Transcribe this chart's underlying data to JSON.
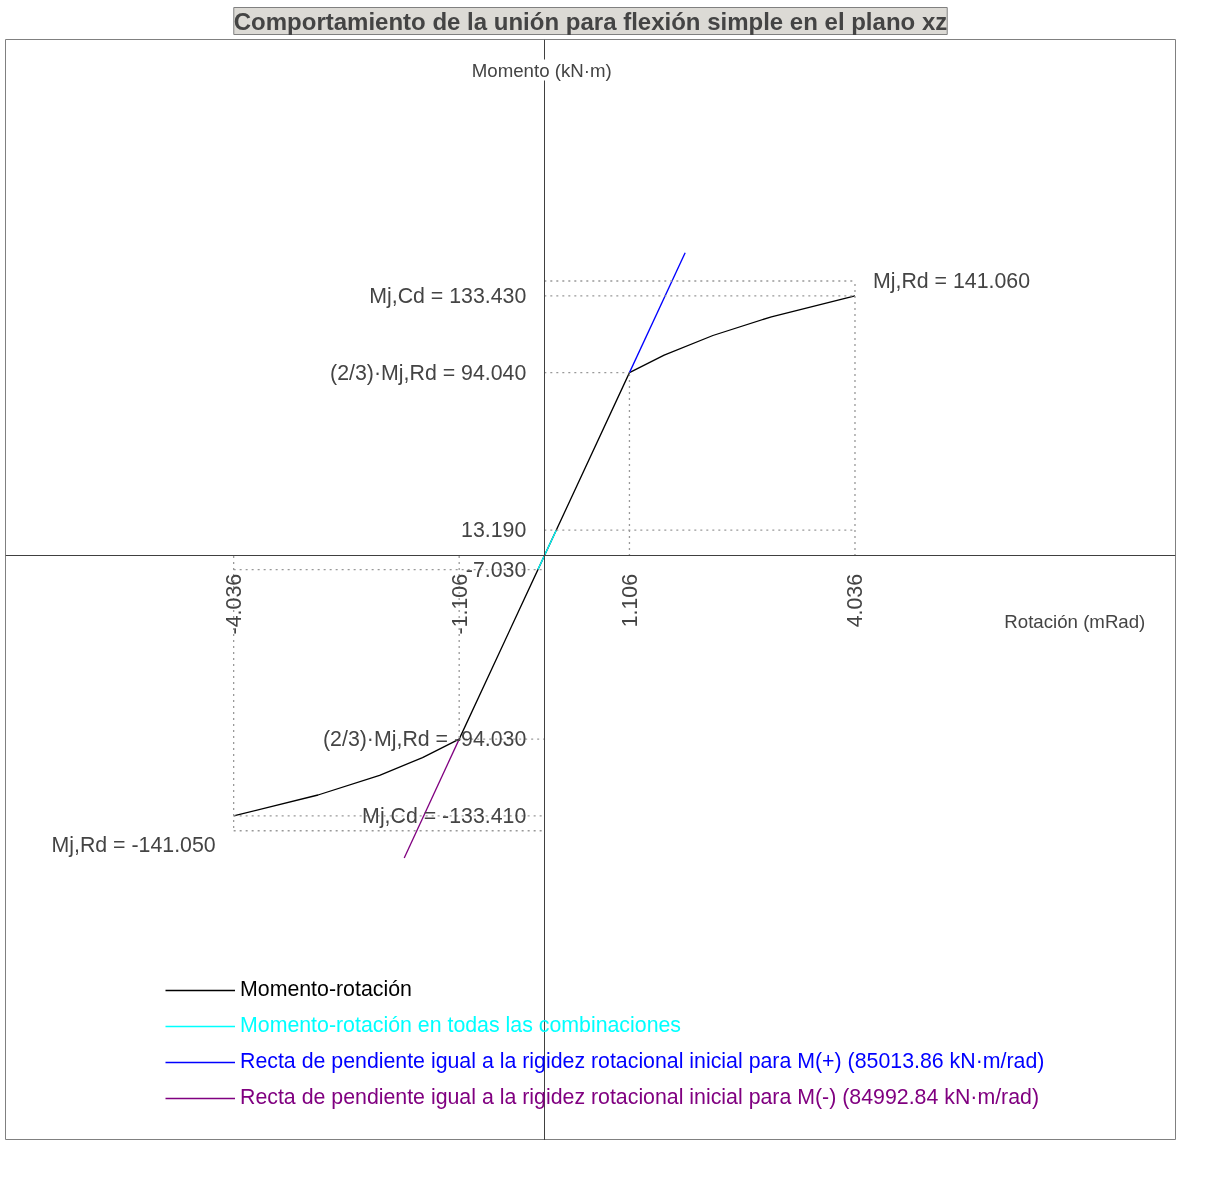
{
  "chart_data": {
    "type": "line",
    "title": "Comportamiento de la unión para flexión simple en el plano xz",
    "xlabel": "Rotación  (mRad)",
    "ylabel": "Momento  (kN·m)",
    "xlim": [
      -7,
      8.2
    ],
    "ylim": [
      -300,
      265
    ],
    "xticks": [
      -4.036,
      -1.106,
      1.106,
      4.036
    ],
    "yticks": [
      {
        "value": 133.43,
        "label": "Mj,Cd = 133.430"
      },
      {
        "value": 94.04,
        "label": "(2/3)·Mj,Rd = 94.040"
      },
      {
        "value": 13.19,
        "label": "13.190"
      },
      {
        "value": -7.03,
        "label": "-7.030"
      },
      {
        "value": -94.03,
        "label": "(2/3)·Mj,Rd = -94.030"
      },
      {
        "value": -133.41,
        "label": "Mj,Cd = -133.410"
      }
    ],
    "grid": false,
    "legend": "bottom",
    "marker": "none",
    "line_style": "solid",
    "series": [
      {
        "name": "Momento-rotación",
        "color": "#000000",
        "x": [
          -4.036,
          -2.94,
          -2.14,
          -1.582,
          -1.106,
          0,
          1.106,
          1.557,
          2.19,
          2.95,
          4.036
        ],
        "values": [
          -133.41,
          -122.7,
          -112.6,
          -103.5,
          -94.03,
          0,
          94.04,
          103.0,
          113.1,
          122.7,
          133.43
        ]
      },
      {
        "name": "Momento-rotación en todas las combinaciones",
        "color": "#00ffff",
        "x": [
          -0.083,
          0.155
        ],
        "values": [
          -7.03,
          13.19
        ]
      },
      {
        "name": "Recta de pendiente igual a la rigidez rotacional inicial para M(+) (85013.86 kN·m/rad)",
        "color": "#0000ff",
        "x": [
          1.106,
          1.83
        ],
        "values": [
          94.04,
          155.6
        ]
      },
      {
        "name": "Recta de pendiente igual a la rigidez rotacional inicial para M(-) (84992.84 kN·m/rad)",
        "color": "#800080",
        "x": [
          -1.106,
          -1.82
        ],
        "values": [
          -94.03,
          -155.0
        ]
      },
      {
        "color": "#999999",
        "line_style": "dotted",
        "x": [
          0,
          4.036
        ],
        "values": [
          141.06,
          141.06
        ]
      },
      {
        "color": "#999999",
        "line_style": "dotted",
        "x": [
          0,
          4.036
        ],
        "values": [
          133.43,
          133.43
        ]
      },
      {
        "color": "#999999",
        "line_style": "dotted",
        "x": [
          0,
          1.106
        ],
        "values": [
          94.04,
          94.04
        ]
      },
      {
        "color": "#999999",
        "line_style": "dotted",
        "x": [
          1.106,
          1.106
        ],
        "values": [
          0,
          94.04
        ]
      },
      {
        "color": "#999999",
        "line_style": "dotted",
        "x": [
          4.036,
          4.036
        ],
        "values": [
          0,
          141.06
        ]
      },
      {
        "color": "#999999",
        "line_style": "dotted",
        "x": [
          0,
          4.036
        ],
        "values": [
          13.19,
          13.19
        ]
      },
      {
        "color": "#999999",
        "line_style": "dotted",
        "x": [
          -4.036,
          0
        ],
        "values": [
          -7.03,
          -7.03
        ]
      },
      {
        "color": "#999999",
        "line_style": "dotted",
        "x": [
          -4.036,
          -4.036
        ],
        "values": [
          0,
          -141.05
        ]
      },
      {
        "color": "#999999",
        "line_style": "dotted",
        "x": [
          -1.106,
          -1.106
        ],
        "values": [
          0,
          -94.03
        ]
      },
      {
        "color": "#999999",
        "line_style": "dotted",
        "x": [
          -1.106,
          0
        ],
        "values": [
          -94.03,
          -94.03
        ]
      },
      {
        "color": "#999999",
        "line_style": "dotted",
        "x": [
          -4.036,
          0
        ],
        "values": [
          -133.41,
          -133.41
        ]
      },
      {
        "color": "#999999",
        "line_style": "dotted",
        "x": [
          -4.036,
          0
        ],
        "values": [
          -141.05,
          -141.05
        ]
      }
    ],
    "annotations": [
      {
        "text": "Mj,Rd = 141.060",
        "x": 4.036,
        "y": 141.06
      },
      {
        "text": "Mj,Rd = -141.050",
        "x": -4.036,
        "y": -141.05
      }
    ]
  }
}
